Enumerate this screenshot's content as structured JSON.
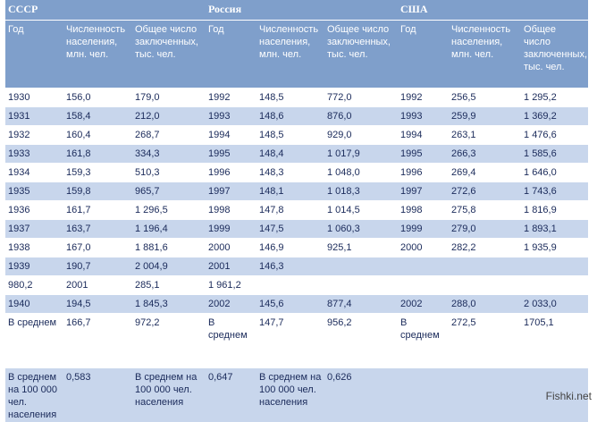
{
  "groups": [
    "СССР",
    "Россия",
    "США"
  ],
  "headers": [
    "Год",
    "Численность населения, млн. чел.",
    "Общее число заключенных, тыс. чел.",
    "Год",
    "Численность населения, млн. чел.",
    "Общее число заключенных, тыс. чел.",
    "Год",
    "Численность населения, млн. чел.",
    "Общее число заключенных, тыс. чел."
  ],
  "rows": [
    [
      "1930",
      "156,0",
      "179,0",
      "1992",
      "148,5",
      "772,0",
      "1992",
      "256,5",
      "1 295,2"
    ],
    [
      "1931",
      "158,4",
      "212,0",
      "1993",
      "148,6",
      "876,0",
      "1993",
      "259,9",
      "1 369,2"
    ],
    [
      "1932",
      "160,4",
      "268,7",
      "1994",
      "148,5",
      "929,0",
      "1994",
      "263,1",
      "1 476,6"
    ],
    [
      "1933",
      "161,8",
      "334,3",
      "1995",
      "148,4",
      "1 017,9",
      "1995",
      "266,3",
      "1 585,6"
    ],
    [
      "1934",
      "159,3",
      "510,3",
      "1996",
      "148,3",
      "1 048,0",
      "1996",
      "269,4",
      "1 646,0"
    ],
    [
      "1935",
      "159,8",
      "965,7",
      "1997",
      "148,1",
      "1 018,3",
      "1997",
      "272,6",
      "1 743,6"
    ],
    [
      "1936",
      "161,7",
      "1 296,5",
      "1998",
      "147,8",
      "1 014,5",
      "1998",
      "275,8",
      "1 816,9"
    ],
    [
      "1937",
      "163,7",
      "1 196,4",
      "1999",
      "147,5",
      "1 060,3",
      "1999",
      "279,0",
      "1 893,1"
    ],
    [
      "1938",
      "167,0",
      "1 881,6",
      "2000",
      "146,9",
      "925,1",
      "2000",
      "282,2",
      "1 935,9"
    ],
    [
      "1939",
      "190,7",
      "2 004,9",
      "2001",
      "146,3",
      "",
      "",
      "",
      ""
    ],
    [
      "980,2",
      "2001",
      "285,1",
      "1 961,2",
      "",
      "",
      "",
      "",
      ""
    ],
    [
      "1940",
      "194,5",
      "1 845,3",
      "2002",
      "145,6",
      "877,4",
      "2002",
      "288,0",
      "2 033,0"
    ],
    [
      "В среднем",
      "166,7",
      "972,2",
      "В среднем",
      "147,7",
      "956,2",
      "В среднем",
      "272,5",
      "1705,1"
    ]
  ],
  "per100k": [
    "В среднем на 100 000 чел. населения",
    "0,583",
    "В среднем на 100 000 чел. населения",
    "0,647",
    "В среднем на 100 000 чел. населения",
    "0,626",
    "",
    "",
    ""
  ],
  "watermark": "Fishki.net"
}
